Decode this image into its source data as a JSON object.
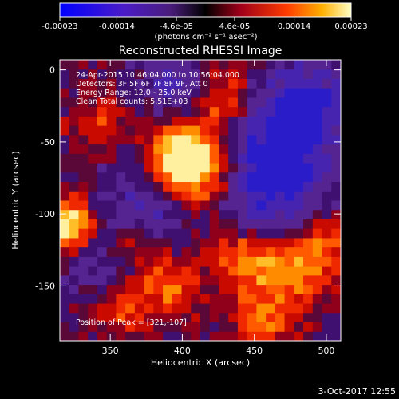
{
  "chart_data": {
    "type": "heatmap",
    "title": "Reconstructed RHESSI Image",
    "xlabel": "Heliocentric X (arcsec)",
    "ylabel": "Heliocentric Y (arcsec)",
    "xlim": [
      315,
      510
    ],
    "ylim": [
      -188,
      7
    ],
    "xticks": [
      350,
      400,
      450,
      500
    ],
    "yticks": [
      0,
      -50,
      -100,
      -150
    ],
    "colorbar": {
      "min": -0.00023,
      "max": 0.00023,
      "ticks": [
        "-0.00023",
        "-0.00014",
        "-4.6e-05",
        "4.6e-05",
        "0.00014",
        "0.00023"
      ],
      "units": "(photons cm⁻² s⁻¹ asec⁻²)"
    },
    "annotations": [
      "24-Apr-2015 10:46:04.000 to 10:56:04.000",
      "Detectors: 3F 5F 6F 7F 8F 9F, Att 0",
      "Energy Range: 12.0 - 25.0 keV",
      "Clean     Total counts: 5.51E+03"
    ],
    "peak_label": "Position of Peak = [321,-107]",
    "sources": [
      {
        "x": 321,
        "y": -107,
        "level": 1.0,
        "r": 12
      },
      {
        "x": 400,
        "y": -60,
        "level": 0.8,
        "r": 16
      },
      {
        "x": 410,
        "y": -70,
        "level": 0.65,
        "r": 20
      },
      {
        "x": 430,
        "y": -20,
        "level": 0.5,
        "r": 14
      },
      {
        "x": 445,
        "y": -130,
        "level": 0.6,
        "r": 18
      },
      {
        "x": 480,
        "y": -140,
        "level": 0.55,
        "r": 18
      },
      {
        "x": 355,
        "y": -165,
        "level": 0.45,
        "r": 15
      },
      {
        "x": 390,
        "y": -150,
        "level": 0.5,
        "r": 15
      },
      {
        "x": 455,
        "y": -175,
        "level": 0.5,
        "r": 14
      },
      {
        "x": 340,
        "y": -35,
        "level": 0.35,
        "r": 14
      },
      {
        "x": 365,
        "y": -120,
        "level": 0.35,
        "r": 13
      },
      {
        "x": 500,
        "y": -120,
        "level": 0.35,
        "r": 12
      }
    ],
    "negative_regions": [
      {
        "x": 470,
        "y": -50,
        "level": -0.7,
        "r": 25
      },
      {
        "x": 490,
        "y": -20,
        "level": -0.5,
        "r": 20
      },
      {
        "x": 455,
        "y": -90,
        "level": -0.6,
        "r": 22
      },
      {
        "x": 375,
        "y": -95,
        "level": -0.45,
        "r": 20
      },
      {
        "x": 345,
        "y": -140,
        "level": -0.35,
        "r": 16
      },
      {
        "x": 395,
        "y": -10,
        "level": -0.35,
        "r": 16
      }
    ]
  },
  "footer": {
    "date": "3-Oct-2017 12:55"
  },
  "colors": {
    "background": "#000000",
    "foreground": "#ffffff"
  }
}
